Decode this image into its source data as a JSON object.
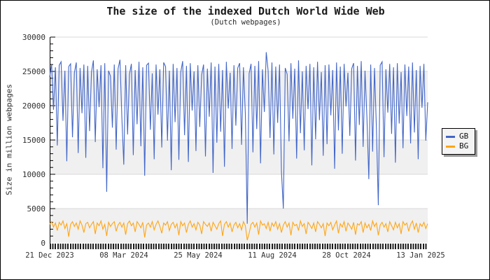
{
  "header": {
    "title": "The size of the indexed Dutch World Wide Web",
    "subtitle": "(Dutch webpages)"
  },
  "y_axis": {
    "label": "Size in million webpages",
    "ticks": [
      0,
      5000,
      10000,
      15000,
      20000,
      25000,
      30000
    ],
    "minor_step": 1000
  },
  "x_axis": {
    "tick_labels": [
      "21 Dec 2023",
      "08 Mar 2024",
      "25 May 2024",
      "11 Aug 2024",
      "28 Oct 2024",
      "13 Jan 2025"
    ]
  },
  "legend": {
    "items": [
      {
        "label": "GB",
        "color": "#4266C8"
      },
      {
        "label": "BG",
        "color": "#FFA513"
      }
    ]
  },
  "colors": {
    "gb_line": "#4266C8",
    "bg_line": "#FFA513",
    "band_gray": "#f0f0f0",
    "gridline": "#d8d8d8",
    "axis": "#000000"
  },
  "chart_data": {
    "type": "line",
    "title": "The size of the indexed Dutch World Wide Web",
    "subtitle": "(Dutch webpages)",
    "xlabel": "",
    "ylabel": "Size in million webpages",
    "ylim": [
      0,
      30000
    ],
    "y_ticks": [
      0,
      5000,
      10000,
      15000,
      20000,
      25000,
      30000
    ],
    "x_tick_labels": [
      "21 Dec 2023",
      "08 Mar 2024",
      "25 May 2024",
      "11 Aug 2024",
      "28 Oct 2024",
      "13 Jan 2025"
    ],
    "grid": "horizontal-bands-alternating",
    "legend_position": "right-outside",
    "series": [
      {
        "name": "GB",
        "color": "#4266C8",
        "values": [
          24200,
          26100,
          19400,
          25600,
          14200,
          25900,
          26400,
          17800,
          25100,
          11900,
          25700,
          26100,
          15400,
          24800,
          26300,
          13100,
          25500,
          18900,
          26000,
          12400,
          25800,
          16300,
          24900,
          26600,
          14700,
          25300,
          19800,
          25900,
          10900,
          26200,
          7450,
          25100,
          24300,
          16800,
          26000,
          13600,
          25400,
          26700,
          18200,
          11400,
          25900,
          15800,
          24600,
          26100,
          12800,
          25200,
          17300,
          26400,
          14100,
          25600,
          9800,
          25900,
          26200,
          16500,
          24700,
          12200,
          26000,
          18700,
          25300,
          13900,
          26300,
          25700,
          14900,
          25100,
          10600,
          26100,
          17600,
          25500,
          12100,
          24900,
          26500,
          15700,
          25800,
          11800,
          26200,
          19300,
          25000,
          13400,
          25900,
          16900,
          24500,
          26000,
          12600,
          25400,
          18400,
          26300,
          10200,
          25700,
          14600,
          26100,
          16200,
          25200,
          11100,
          26400,
          19600,
          24800,
          13700,
          25900,
          17100,
          25500,
          26200,
          14300,
          25600,
          18800,
          2800,
          24700,
          26100,
          13200,
          25800,
          16600,
          26500,
          11600,
          25300,
          19100,
          27800,
          25100,
          15300,
          26300,
          12900,
          25700,
          17500,
          26000,
          10400,
          5000,
          25500,
          24600,
          14800,
          26200,
          18100,
          25400,
          12300,
          26600,
          16000,
          25000,
          13500,
          25800,
          19500,
          26100,
          11300,
          25600,
          15100,
          26400,
          17900,
          24900,
          12700,
          25900,
          14400,
          26000,
          18600,
          25200,
          10800,
          26300,
          16400,
          25700,
          13000,
          26100,
          19900,
          24800,
          15600,
          25400,
          26200,
          12000,
          25800,
          17200,
          26500,
          14000,
          25100,
          18300,
          9300,
          26000,
          13300,
          25500,
          16700,
          5500,
          25900,
          26400,
          12500,
          25300,
          19000,
          26100,
          15900,
          25600,
          11700,
          26200,
          17400,
          24900,
          13800,
          26000,
          18500,
          25700,
          14500,
          26300,
          16100,
          25200,
          12200,
          25800,
          19700,
          26100,
          14900,
          20500
        ]
      },
      {
        "name": "BG",
        "color": "#FFA513",
        "values": [
          2700,
          3100,
          2300,
          2900,
          1800,
          3000,
          2600,
          3200,
          2100,
          2800,
          900,
          2700,
          3100,
          2400,
          2900,
          2000,
          3200,
          2600,
          1500,
          2800,
          3000,
          2200,
          2700,
          3100,
          1300,
          2900,
          2500,
          3200,
          2000,
          2700,
          1000,
          3000,
          2400,
          2800,
          3100,
          1700,
          2600,
          3000,
          2300,
          2900,
          1200,
          2800,
          3200,
          2500,
          2900,
          1600,
          3100,
          2700,
          2200,
          3000,
          800,
          2600,
          2900,
          2300,
          3100,
          1900,
          2700,
          3200,
          2400,
          1400,
          2900,
          2600,
          3100,
          1800,
          2700,
          3000,
          2200,
          2800,
          1100,
          3100,
          2500,
          2900,
          1500,
          2700,
          3200,
          2300,
          2800,
          1900,
          3000,
          2600,
          1300,
          3100,
          2700,
          2400,
          2900,
          1700,
          3000,
          2500,
          2000,
          2800,
          3200,
          1000,
          2700,
          3100,
          2300,
          2900,
          1600,
          2600,
          3000,
          2200,
          2800,
          1900,
          3100,
          2500,
          400,
          1400,
          2700,
          3000,
          2300,
          2900,
          1200,
          3200,
          2600,
          2800,
          2100,
          3000,
          1700,
          2900,
          2400,
          3100,
          2000,
          2800,
          1500,
          2600,
          3100,
          2300,
          2900,
          1100,
          3000,
          2500,
          2700,
          1800,
          3200,
          2400,
          2800,
          1300,
          3000,
          2600,
          2100,
          2900,
          1600,
          3100,
          2700,
          2200,
          2800,
          1000,
          2900,
          2500,
          3000,
          1900,
          2600,
          3200,
          1400,
          2800,
          2300,
          3100,
          1700,
          2900,
          2500,
          2000,
          3000,
          1200,
          2800,
          2600,
          3100,
          1500,
          2900,
          2200,
          2700,
          1800,
          3200,
          2400,
          2900,
          1100,
          2600,
          3000,
          2300,
          2800,
          1600,
          3100,
          2500,
          1900,
          3000,
          2200,
          2800,
          1300,
          3100,
          2600,
          2900,
          1700,
          2700,
          3200,
          2000,
          2900,
          1500,
          2800,
          2400,
          3000,
          2100,
          2800
        ]
      }
    ]
  }
}
